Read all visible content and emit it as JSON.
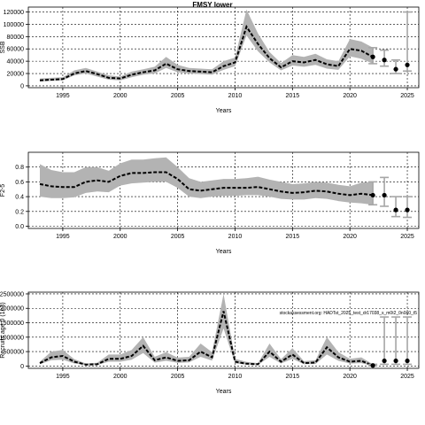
{
  "title": "FMSY lower",
  "chart_data": [
    {
      "type": "line",
      "ylabel": "SSB",
      "xlabel": "Years",
      "xlim": [
        1992,
        2026
      ],
      "ylim": [
        -3000,
        128000
      ],
      "xticks": [
        1995,
        2000,
        2005,
        2010,
        2015,
        2020,
        2025
      ],
      "yticks": [
        0,
        20000,
        40000,
        60000,
        80000,
        100000,
        120000
      ],
      "ytick_labels": [
        "0",
        "20000",
        "40000",
        "60000",
        "80000",
        "100000",
        "120000"
      ],
      "grid": true,
      "series": [
        {
          "x": [
            1993,
            1994,
            1995,
            1996,
            1997,
            1998,
            1999,
            2000,
            2001,
            2002,
            2003,
            2004,
            2005,
            2006,
            2007,
            2008,
            2009,
            2010,
            2011,
            2012,
            2013,
            2014,
            2015,
            2016,
            2017,
            2018,
            2019,
            2020,
            2021,
            2022
          ],
          "values": [
            9000,
            10000,
            11000,
            20000,
            24000,
            19000,
            13000,
            12000,
            18000,
            22000,
            25000,
            36000,
            27000,
            24000,
            23000,
            22000,
            32000,
            38000,
            96000,
            68000,
            45000,
            30000,
            40000,
            38000,
            42000,
            35000,
            32000,
            60000,
            57000,
            47000
          ],
          "lower": [
            7000,
            8000,
            9000,
            17000,
            20000,
            15000,
            10000,
            9000,
            14000,
            18000,
            20000,
            29000,
            22000,
            20000,
            19000,
            18000,
            26000,
            32000,
            82000,
            56000,
            38000,
            25000,
            33000,
            31000,
            34000,
            28000,
            26000,
            48000,
            44000,
            36000
          ],
          "upper": [
            12000,
            13000,
            14000,
            25000,
            29000,
            23000,
            17000,
            15000,
            23000,
            27000,
            31000,
            47000,
            34000,
            29000,
            28000,
            27000,
            40000,
            46000,
            124000,
            85000,
            55000,
            37000,
            50000,
            47000,
            52000,
            43000,
            40000,
            76000,
            72000,
            62000
          ]
        }
      ],
      "projection": {
        "x": [
          2022,
          2023,
          2024,
          2025
        ],
        "values": [
          47000,
          42000,
          27000,
          34000
        ],
        "lower": [
          36000,
          32000,
          20000,
          24000
        ],
        "upper": [
          62000,
          58000,
          42000,
          120000
        ]
      }
    },
    {
      "type": "line",
      "ylabel": "F2-5",
      "xlabel": "Years",
      "xlim": [
        1992,
        2026
      ],
      "ylim": [
        -0.03,
        1.0
      ],
      "xticks": [
        1995,
        2000,
        2005,
        2010,
        2015,
        2020,
        2025
      ],
      "yticks": [
        0.0,
        0.2,
        0.4,
        0.6,
        0.8
      ],
      "ytick_labels": [
        "0.0",
        "0.2",
        "0.4",
        "0.6",
        "0.8"
      ],
      "grid": true,
      "series": [
        {
          "x": [
            1993,
            1994,
            1995,
            1996,
            1997,
            1998,
            1999,
            2000,
            2001,
            2002,
            2003,
            2004,
            2005,
            2006,
            2007,
            2008,
            2009,
            2010,
            2011,
            2012,
            2013,
            2014,
            2015,
            2016,
            2017,
            2018,
            2019,
            2020,
            2021,
            2022
          ],
          "values": [
            0.57,
            0.54,
            0.53,
            0.53,
            0.6,
            0.62,
            0.6,
            0.68,
            0.72,
            0.72,
            0.73,
            0.73,
            0.64,
            0.5,
            0.48,
            0.5,
            0.52,
            0.52,
            0.52,
            0.53,
            0.5,
            0.47,
            0.45,
            0.46,
            0.48,
            0.47,
            0.44,
            0.42,
            0.44,
            0.42
          ],
          "lower": [
            0.4,
            0.38,
            0.38,
            0.39,
            0.45,
            0.47,
            0.46,
            0.55,
            0.58,
            0.59,
            0.6,
            0.6,
            0.52,
            0.4,
            0.38,
            0.4,
            0.41,
            0.41,
            0.42,
            0.42,
            0.4,
            0.37,
            0.36,
            0.36,
            0.38,
            0.37,
            0.34,
            0.32,
            0.31,
            0.29
          ],
          "upper": [
            0.84,
            0.76,
            0.73,
            0.73,
            0.8,
            0.8,
            0.75,
            0.85,
            0.9,
            0.9,
            0.92,
            0.93,
            0.8,
            0.65,
            0.6,
            0.62,
            0.64,
            0.64,
            0.65,
            0.67,
            0.63,
            0.6,
            0.57,
            0.58,
            0.6,
            0.59,
            0.56,
            0.54,
            0.59,
            0.6
          ]
        }
      ],
      "projection": {
        "x": [
          2022,
          2023,
          2024,
          2025
        ],
        "values": [
          0.42,
          0.42,
          0.22,
          0.22
        ],
        "lower": [
          0.29,
          0.27,
          0.13,
          0.12
        ],
        "upper": [
          0.6,
          0.66,
          0.4,
          0.4
        ]
      }
    },
    {
      "type": "line",
      "ylabel": "Recruits age 0 (1e3)",
      "xlabel": "Years",
      "xlim": [
        1992,
        2026
      ],
      "ylim": [
        -80000,
        2560000
      ],
      "xticks": [
        1995,
        2000,
        2005,
        2010,
        2015,
        2020,
        2025
      ],
      "yticks": [
        0,
        500000,
        1000000,
        1500000,
        2000000,
        2500000
      ],
      "ytick_labels": [
        "0",
        "500000",
        "1000000",
        "1500000",
        "2000000",
        "2500000"
      ],
      "grid": true,
      "annotation": "stockassessment.org: HADTst_2025_test_dr17038_s_m0t2_0n0n0_t5",
      "series": [
        {
          "x": [
            1993,
            1994,
            1995,
            1996,
            1997,
            1998,
            1999,
            2000,
            2001,
            2002,
            2003,
            2004,
            2005,
            2006,
            2007,
            2008,
            2009,
            2010,
            2011,
            2012,
            2013,
            2014,
            2015,
            2016,
            2017,
            2018,
            2019,
            2020,
            2021,
            2022
          ],
          "values": [
            100000,
            300000,
            350000,
            150000,
            50000,
            60000,
            250000,
            250000,
            350000,
            700000,
            200000,
            300000,
            180000,
            200000,
            500000,
            300000,
            1900000,
            150000,
            80000,
            60000,
            500000,
            150000,
            400000,
            100000,
            120000,
            650000,
            300000,
            150000,
            180000,
            20000
          ],
          "lower": [
            60000,
            200000,
            220000,
            90000,
            30000,
            35000,
            150000,
            150000,
            220000,
            450000,
            120000,
            180000,
            110000,
            130000,
            320000,
            190000,
            1300000,
            90000,
            50000,
            35000,
            320000,
            90000,
            250000,
            60000,
            70000,
            400000,
            180000,
            90000,
            100000,
            5000
          ],
          "upper": [
            150000,
            500000,
            560000,
            240000,
            90000,
            110000,
            400000,
            400000,
            560000,
            1000000,
            320000,
            480000,
            290000,
            320000,
            780000,
            480000,
            2500000,
            250000,
            140000,
            100000,
            780000,
            240000,
            620000,
            170000,
            200000,
            1000000,
            480000,
            250000,
            300000,
            60000
          ]
        }
      ],
      "projection": {
        "x": [
          2022,
          2023,
          2024,
          2025
        ],
        "values": [
          20000,
          180000,
          180000,
          180000
        ],
        "lower": [
          5000,
          60000,
          60000,
          60000
        ],
        "upper": [
          60000,
          1700000,
          1700000,
          1700000
        ]
      }
    }
  ]
}
